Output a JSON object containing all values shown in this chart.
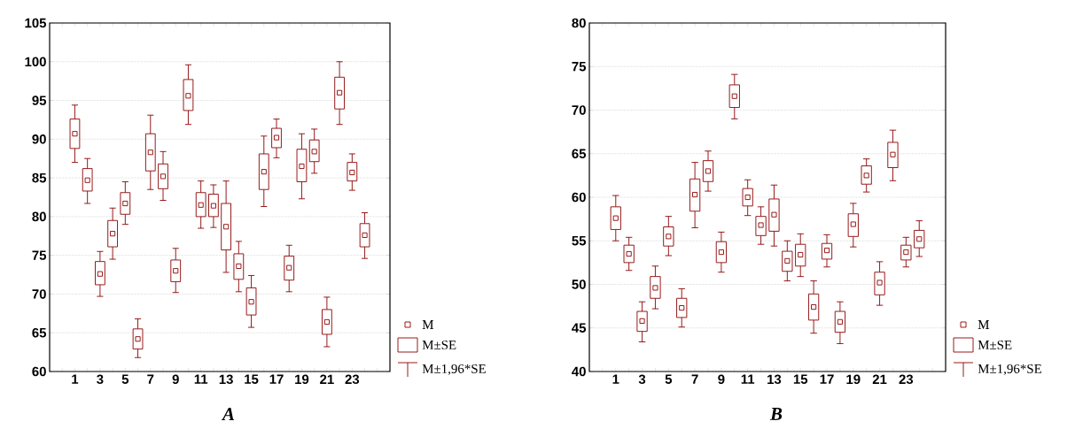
{
  "chart_data": [
    {
      "type": "box",
      "title": "A",
      "color": "#8b0000",
      "marker": "square",
      "grid": "y",
      "categories": [
        "1",
        null,
        "3",
        null,
        "5",
        null,
        "7",
        null,
        "9",
        null,
        "11",
        null,
        "13",
        null,
        "15",
        null,
        "17",
        null,
        "19",
        null,
        "21",
        null,
        "23",
        null
      ],
      "ylim": [
        60,
        105
      ],
      "yticks": [
        60,
        65,
        70,
        75,
        80,
        85,
        90,
        95,
        100,
        105
      ],
      "annotations": [
        "M",
        "M±SE",
        "M±1,96*SE"
      ],
      "boxes": [
        {
          "low": 87.0,
          "q1": 88.8,
          "median": 90.7,
          "q3": 92.6,
          "high": 94.4
        },
        {
          "low": 81.7,
          "q1": 83.3,
          "median": 84.7,
          "q3": 86.2,
          "high": 87.5
        },
        {
          "low": 69.7,
          "q1": 71.2,
          "median": 72.6,
          "q3": 74.2,
          "high": 75.5
        },
        {
          "low": 74.5,
          "q1": 76.1,
          "median": 77.8,
          "q3": 79.5,
          "high": 81.1
        },
        {
          "low": 79.0,
          "q1": 80.3,
          "median": 81.7,
          "q3": 83.1,
          "high": 84.5
        },
        {
          "low": 61.8,
          "q1": 62.9,
          "median": 64.2,
          "q3": 65.5,
          "high": 66.8
        },
        {
          "low": 83.5,
          "q1": 85.9,
          "median": 88.3,
          "q3": 90.7,
          "high": 93.1
        },
        {
          "low": 82.1,
          "q1": 83.6,
          "median": 85.2,
          "q3": 86.8,
          "high": 88.4
        },
        {
          "low": 70.2,
          "q1": 71.6,
          "median": 73.0,
          "q3": 74.4,
          "high": 75.9
        },
        {
          "low": 91.9,
          "q1": 93.7,
          "median": 95.6,
          "q3": 97.7,
          "high": 99.6
        },
        {
          "low": 78.5,
          "q1": 80.0,
          "median": 81.5,
          "q3": 83.1,
          "high": 84.6
        },
        {
          "low": 78.6,
          "q1": 80.0,
          "median": 81.4,
          "q3": 82.9,
          "high": 84.1
        },
        {
          "low": 72.8,
          "q1": 75.7,
          "median": 78.7,
          "q3": 81.7,
          "high": 84.6
        },
        {
          "low": 70.3,
          "q1": 71.9,
          "median": 73.6,
          "q3": 75.2,
          "high": 76.8
        },
        {
          "low": 65.7,
          "q1": 67.3,
          "median": 69.0,
          "q3": 70.8,
          "high": 72.4
        },
        {
          "low": 81.3,
          "q1": 83.5,
          "median": 85.8,
          "q3": 88.1,
          "high": 90.4
        },
        {
          "low": 87.6,
          "q1": 88.9,
          "median": 90.2,
          "q3": 91.4,
          "high": 92.6
        },
        {
          "low": 70.3,
          "q1": 71.8,
          "median": 73.4,
          "q3": 74.9,
          "high": 76.3
        },
        {
          "low": 82.3,
          "q1": 84.5,
          "median": 86.5,
          "q3": 88.7,
          "high": 90.7
        },
        {
          "low": 85.6,
          "q1": 87.1,
          "median": 88.4,
          "q3": 89.9,
          "high": 91.3
        },
        {
          "low": 63.2,
          "q1": 64.8,
          "median": 66.4,
          "q3": 68.0,
          "high": 69.6
        },
        {
          "low": 91.9,
          "q1": 93.9,
          "median": 96.0,
          "q3": 98.0,
          "high": 100.0
        },
        {
          "low": 83.4,
          "q1": 84.6,
          "median": 85.7,
          "q3": 87.0,
          "high": 88.1
        },
        {
          "low": 74.6,
          "q1": 76.1,
          "median": 77.6,
          "q3": 79.1,
          "high": 80.5
        }
      ]
    },
    {
      "type": "box",
      "title": "B",
      "color": "#8b0000",
      "marker": "square",
      "grid": "y",
      "categories": [
        "1",
        null,
        "3",
        null,
        "5",
        null,
        "7",
        null,
        "9",
        null,
        "11",
        null,
        "13",
        null,
        "15",
        null,
        "17",
        null,
        "19",
        null,
        "21",
        null,
        "23",
        null
      ],
      "ylim": [
        40,
        80
      ],
      "yticks": [
        40,
        45,
        50,
        55,
        60,
        65,
        70,
        75,
        80
      ],
      "annotations": [
        "M",
        "M±SE",
        "M±1,96*SE"
      ],
      "boxes": [
        {
          "low": 55.0,
          "q1": 56.3,
          "median": 57.6,
          "q3": 58.9,
          "high": 60.2
        },
        {
          "low": 51.6,
          "q1": 52.5,
          "median": 53.5,
          "q3": 54.5,
          "high": 55.4
        },
        {
          "low": 43.4,
          "q1": 44.6,
          "median": 45.8,
          "q3": 46.9,
          "high": 48.0
        },
        {
          "low": 47.2,
          "q1": 48.4,
          "median": 49.6,
          "q3": 50.9,
          "high": 52.1
        },
        {
          "low": 53.3,
          "q1": 54.4,
          "median": 55.5,
          "q3": 56.6,
          "high": 57.8
        },
        {
          "low": 45.1,
          "q1": 46.2,
          "median": 47.3,
          "q3": 48.4,
          "high": 49.5
        },
        {
          "low": 56.5,
          "q1": 58.4,
          "median": 60.3,
          "q3": 62.1,
          "high": 64.0
        },
        {
          "low": 60.7,
          "q1": 61.8,
          "median": 63.0,
          "q3": 64.2,
          "high": 65.3
        },
        {
          "low": 51.4,
          "q1": 52.5,
          "median": 53.7,
          "q3": 54.9,
          "high": 56.0
        },
        {
          "low": 69.0,
          "q1": 70.3,
          "median": 71.6,
          "q3": 72.9,
          "high": 74.1
        },
        {
          "low": 57.9,
          "q1": 59.0,
          "median": 60.0,
          "q3": 61.0,
          "high": 62.0
        },
        {
          "low": 54.6,
          "q1": 55.6,
          "median": 56.8,
          "q3": 57.8,
          "high": 58.9
        },
        {
          "low": 54.4,
          "q1": 56.1,
          "median": 58.0,
          "q3": 59.8,
          "high": 61.4
        },
        {
          "low": 50.4,
          "q1": 51.5,
          "median": 52.7,
          "q3": 53.8,
          "high": 55.0
        },
        {
          "low": 50.9,
          "q1": 52.1,
          "median": 53.4,
          "q3": 54.6,
          "high": 55.8
        },
        {
          "low": 44.4,
          "q1": 45.9,
          "median": 47.4,
          "q3": 48.9,
          "high": 50.4
        },
        {
          "low": 52.0,
          "q1": 52.9,
          "median": 53.9,
          "q3": 54.7,
          "high": 55.7
        },
        {
          "low": 43.2,
          "q1": 44.5,
          "median": 45.7,
          "q3": 46.9,
          "high": 48.0
        },
        {
          "low": 54.3,
          "q1": 55.5,
          "median": 56.9,
          "q3": 58.1,
          "high": 59.3
        },
        {
          "low": 60.6,
          "q1": 61.5,
          "median": 62.5,
          "q3": 63.6,
          "high": 64.4
        },
        {
          "low": 47.6,
          "q1": 48.8,
          "median": 50.2,
          "q3": 51.4,
          "high": 52.6
        },
        {
          "low": 61.9,
          "q1": 63.4,
          "median": 64.9,
          "q3": 66.3,
          "high": 67.7
        },
        {
          "low": 52.0,
          "q1": 52.8,
          "median": 53.7,
          "q3": 54.5,
          "high": 55.4
        },
        {
          "low": 53.2,
          "q1": 54.2,
          "median": 55.2,
          "q3": 56.2,
          "high": 57.3
        }
      ]
    }
  ]
}
